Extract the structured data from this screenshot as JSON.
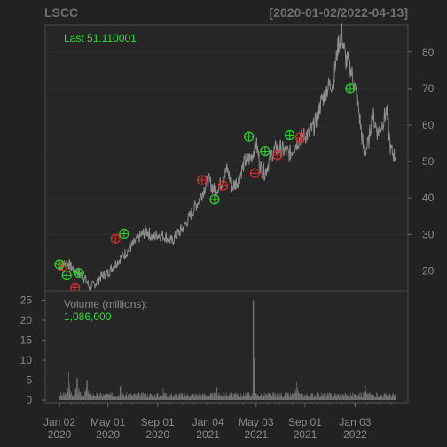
{
  "header": {
    "symbol": "LSCC",
    "date_range": "[2020-01-02/2022-04-13]"
  },
  "price_panel": {
    "last_label": "Last 51.110001",
    "y_ticks": [
      "20",
      "30",
      "40",
      "50",
      "60",
      "70",
      "80"
    ]
  },
  "volume_panel": {
    "label": "Volume (millions):",
    "value": "1,086,000",
    "y_ticks": [
      "0",
      "5",
      "10",
      "15",
      "20",
      "25"
    ]
  },
  "x_axis": {
    "ticks": [
      {
        "top": "Jan 02",
        "bottom": "2020"
      },
      {
        "top": "May 01",
        "bottom": "2020"
      },
      {
        "top": "Sep 01",
        "bottom": "2020"
      },
      {
        "top": "Jan 04",
        "bottom": "2021"
      },
      {
        "top": "May 03",
        "bottom": "2021"
      },
      {
        "top": "Sep 01",
        "bottom": "2021"
      },
      {
        "top": "Jan 03",
        "bottom": "2022"
      }
    ]
  },
  "colors": {
    "background": "#222222",
    "panel": "#262626",
    "price_line": "#8c8c8c",
    "volume_bar": "#7a7a7a",
    "buy_marker": "#2ecc2e",
    "sell_marker": "#d03030",
    "label_green": "#33dd33",
    "label_grey": "#8a8a8a"
  },
  "chart_data": {
    "type": "line",
    "x_range": [
      "2020-01-02",
      "2022-04-13"
    ],
    "ylim": [
      15,
      87
    ],
    "volume_ylim": [
      0,
      26
    ],
    "price_points": [
      [
        "2020-01-02",
        21.0
      ],
      [
        "2020-01-20",
        22.5
      ],
      [
        "2020-02-05",
        20.5
      ],
      [
        "2020-02-20",
        19.5
      ],
      [
        "2020-03-05",
        18.0
      ],
      [
        "2020-03-18",
        15.3
      ],
      [
        "2020-03-30",
        16.5
      ],
      [
        "2020-04-15",
        18.5
      ],
      [
        "2020-05-01",
        19.5
      ],
      [
        "2020-05-20",
        22.0
      ],
      [
        "2020-06-10",
        24.5
      ],
      [
        "2020-07-01",
        27.0
      ],
      [
        "2020-07-20",
        29.5
      ],
      [
        "2020-08-05",
        31.0
      ],
      [
        "2020-08-20",
        29.0
      ],
      [
        "2020-09-01",
        30.0
      ],
      [
        "2020-09-20",
        29.5
      ],
      [
        "2020-10-05",
        28.0
      ],
      [
        "2020-10-20",
        30.0
      ],
      [
        "2020-11-05",
        32.0
      ],
      [
        "2020-11-25",
        36.0
      ],
      [
        "2020-12-15",
        40.0
      ],
      [
        "2021-01-04",
        45.0
      ],
      [
        "2021-01-20",
        42.0
      ],
      [
        "2021-02-05",
        44.0
      ],
      [
        "2021-02-20",
        48.0
      ],
      [
        "2021-03-05",
        43.0
      ],
      [
        "2021-03-20",
        45.0
      ],
      [
        "2021-04-05",
        50.0
      ],
      [
        "2021-04-20",
        51.0
      ],
      [
        "2021-05-03",
        55.0
      ],
      [
        "2021-05-15",
        48.0
      ],
      [
        "2021-05-25",
        47.0
      ],
      [
        "2021-06-10",
        52.0
      ],
      [
        "2021-06-25",
        54.0
      ],
      [
        "2021-07-10",
        53.0
      ],
      [
        "2021-07-25",
        52.0
      ],
      [
        "2021-08-10",
        55.0
      ],
      [
        "2021-08-25",
        57.0
      ],
      [
        "2021-09-10",
        57.5
      ],
      [
        "2021-09-25",
        60.0
      ],
      [
        "2021-10-10",
        66.0
      ],
      [
        "2021-10-25",
        70.0
      ],
      [
        "2021-11-10",
        72.0
      ],
      [
        "2021-11-22",
        82.0
      ],
      [
        "2021-12-01",
        85.0
      ],
      [
        "2021-12-10",
        78.0
      ],
      [
        "2021-12-22",
        76.0
      ],
      [
        "2022-01-03",
        70.0
      ],
      [
        "2022-01-12",
        64.0
      ],
      [
        "2022-01-25",
        52.0
      ],
      [
        "2022-02-05",
        55.0
      ],
      [
        "2022-02-15",
        63.0
      ],
      [
        "2022-02-28",
        58.0
      ],
      [
        "2022-03-10",
        60.0
      ],
      [
        "2022-03-22",
        64.0
      ],
      [
        "2022-04-01",
        53.0
      ],
      [
        "2022-04-13",
        51.11
      ]
    ],
    "buy_signals": [
      [
        "2020-01-02",
        21.8
      ],
      [
        "2020-01-20",
        18.8
      ],
      [
        "2020-02-20",
        19.4
      ],
      [
        "2020-06-10",
        30.2
      ],
      [
        "2021-01-20",
        39.6
      ],
      [
        "2021-04-15",
        56.8
      ],
      [
        "2021-05-25",
        52.8
      ],
      [
        "2021-07-25",
        57.2
      ],
      [
        "2021-12-22",
        70.0
      ]
    ],
    "sell_signals": [
      [
        "2020-01-10",
        21.3
      ],
      [
        "2020-02-10",
        15.4
      ],
      [
        "2020-05-20",
        28.8
      ],
      [
        "2020-12-20",
        44.9
      ],
      [
        "2021-02-10",
        43.4
      ],
      [
        "2021-04-30",
        46.8
      ],
      [
        "2021-06-25",
        51.8
      ],
      [
        "2021-08-20",
        56.6
      ]
    ],
    "volume_baseline_millions": 1.5,
    "volume_spikes": [
      [
        "2020-01-25",
        7.0
      ],
      [
        "2020-02-15",
        5.5
      ],
      [
        "2020-03-10",
        4.8
      ],
      [
        "2020-06-01",
        3.5
      ],
      [
        "2020-09-15",
        3.0
      ],
      [
        "2021-01-25",
        3.2
      ],
      [
        "2021-04-10",
        4.0
      ],
      [
        "2021-04-26",
        25.0
      ],
      [
        "2021-04-28",
        10.5
      ],
      [
        "2021-08-12",
        4.5
      ],
      [
        "2022-01-28",
        3.6
      ]
    ]
  }
}
